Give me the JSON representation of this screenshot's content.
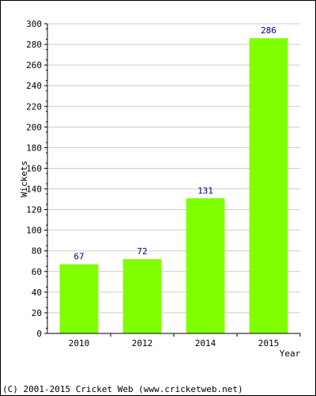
{
  "chart_data": {
    "type": "bar",
    "categories": [
      "2010",
      "2012",
      "2014",
      "2015"
    ],
    "values": [
      67,
      72,
      131,
      286
    ],
    "xlabel": "Year",
    "ylabel": "Wickets",
    "ylim": [
      0,
      300
    ],
    "ytick_step": 20,
    "grid": true,
    "bar_color": "#80ff00",
    "value_label_color": "#000080",
    "grid_color": "#cccccc"
  },
  "footer": {
    "copyright": "(C) 2001-2015 Cricket Web (www.cricketweb.net)"
  }
}
